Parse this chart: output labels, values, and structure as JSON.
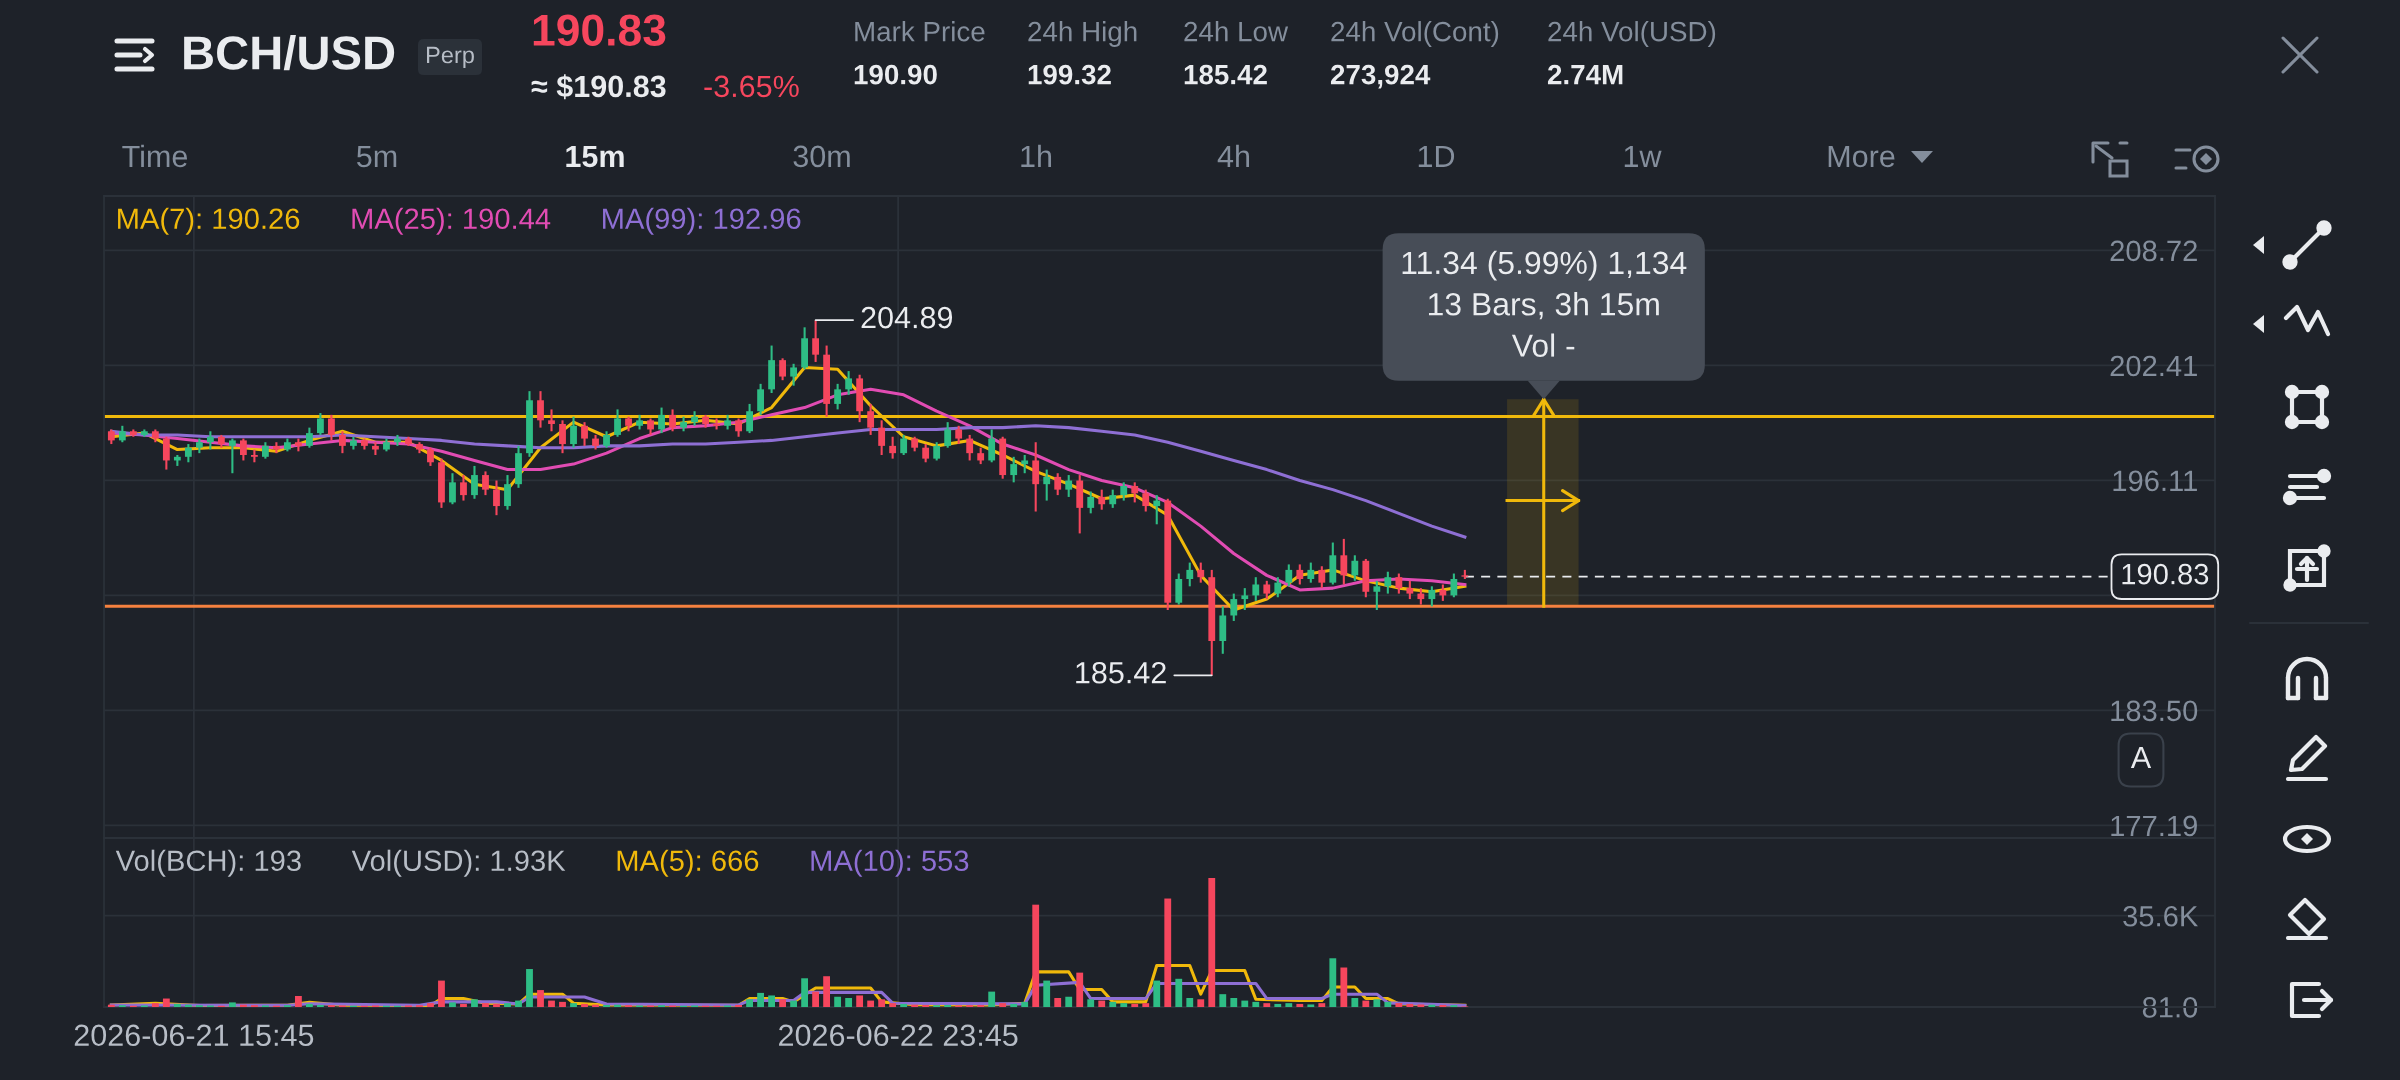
{
  "chart_data": [
    {
      "type": "candlestick",
      "title": "BCH/USD",
      "x": [
        "2026-06-21T12:00",
        "2026-06-21T12:30",
        "2026-06-21T13:00",
        "2026-06-21T13:30",
        "2026-06-21T14:00",
        "2026-06-21T14:30",
        "2026-06-21T15:00",
        "2026-06-21T15:30",
        "2026-06-21T16:00",
        "2026-06-21T16:30",
        "2026-06-21T17:00",
        "2026-06-21T17:30",
        "2026-06-21T18:00",
        "2026-06-21T18:30",
        "2026-06-21T19:00",
        "2026-06-21T19:30",
        "2026-06-21T20:00",
        "2026-06-21T20:30",
        "2026-06-21T21:00",
        "2026-06-21T21:30",
        "2026-06-21T22:00",
        "2026-06-21T22:30",
        "2026-06-21T23:00",
        "2026-06-21T23:30",
        "2026-06-22T00:00",
        "2026-06-22T00:30",
        "2026-06-22T01:00",
        "2026-06-22T01:30",
        "2026-06-22T02:00",
        "2026-06-22T02:30",
        "2026-06-22T03:00",
        "2026-06-22T03:30",
        "2026-06-22T04:00",
        "2026-06-22T04:30",
        "2026-06-22T05:00",
        "2026-06-22T05:30",
        "2026-06-22T06:00",
        "2026-06-22T06:30",
        "2026-06-22T07:00",
        "2026-06-22T07:30",
        "2026-06-22T08:00",
        "2026-06-22T08:30",
        "2026-06-22T09:00",
        "2026-06-22T09:30",
        "2026-06-22T10:00",
        "2026-06-22T10:30",
        "2026-06-22T11:00",
        "2026-06-22T11:30",
        "2026-06-22T12:00",
        "2026-06-22T12:30",
        "2026-06-22T13:00",
        "2026-06-22T13:30",
        "2026-06-22T14:00",
        "2026-06-22T14:30",
        "2026-06-22T15:00",
        "2026-06-22T15:30",
        "2026-06-22T16:00",
        "2026-06-22T16:30",
        "2026-06-22T17:00",
        "2026-06-22T17:30",
        "2026-06-22T18:00",
        "2026-06-22T18:30",
        "2026-06-22T19:00",
        "2026-06-22T19:30",
        "2026-06-22T20:00",
        "2026-06-22T20:30",
        "2026-06-22T21:00",
        "2026-06-22T21:30",
        "2026-06-22T22:00",
        "2026-06-22T22:30",
        "2026-06-22T23:00",
        "2026-06-22T23:30",
        "2026-06-23T00:00",
        "2026-06-23T00:30",
        "2026-06-23T01:00",
        "2026-06-23T01:30",
        "2026-06-23T02:00",
        "2026-06-23T02:30",
        "2026-06-23T03:00",
        "2026-06-23T03:30",
        "2026-06-23T04:00",
        "2026-06-23T04:30",
        "2026-06-23T05:00",
        "2026-06-23T05:30",
        "2026-06-23T06:00",
        "2026-06-23T06:30",
        "2026-06-23T07:00",
        "2026-06-23T07:30",
        "2026-06-23T08:00",
        "2026-06-23T08:30",
        "2026-06-23T09:00",
        "2026-06-23T09:30",
        "2026-06-23T10:00",
        "2026-06-23T10:30",
        "2026-06-23T11:00",
        "2026-06-23T11:30",
        "2026-06-23T12:00",
        "2026-06-23T12:30",
        "2026-06-23T13:00",
        "2026-06-23T13:30",
        "2026-06-23T14:00",
        "2026-06-23T14:30",
        "2026-06-23T15:00",
        "2026-06-23T15:30",
        "2026-06-23T16:00",
        "2026-06-23T16:30",
        "2026-06-23T17:00",
        "2026-06-23T17:30",
        "2026-06-23T18:00",
        "2026-06-23T18:30",
        "2026-06-23T19:00",
        "2026-06-23T19:30",
        "2026-06-23T20:00",
        "2026-06-23T20:30",
        "2026-06-23T21:00",
        "2026-06-23T21:30",
        "2026-06-23T22:00",
        "2026-06-23T22:30",
        "2026-06-23T23:00",
        "2026-06-23T23:30",
        "2026-06-24T00:00",
        "2026-06-24T00:30",
        "2026-06-24T01:00",
        "2026-06-24T01:30"
      ],
      "ohlc": [
        [
          198.8,
          198.9,
          198.1,
          198.3
        ],
        [
          198.3,
          199.1,
          198.2,
          198.8
        ],
        [
          198.8,
          198.9,
          198.5,
          198.6
        ],
        [
          198.6,
          198.9,
          198.5,
          198.8
        ],
        [
          198.8,
          198.9,
          198.2,
          198.4
        ],
        [
          198.4,
          198.5,
          196.7,
          197.2
        ],
        [
          197.2,
          197.5,
          196.9,
          197.4
        ],
        [
          197.4,
          198.1,
          197.1,
          197.9
        ],
        [
          197.9,
          198.4,
          197.6,
          198.2
        ],
        [
          198.2,
          198.8,
          197.8,
          198.5
        ],
        [
          198.5,
          198.6,
          197.9,
          198.1
        ],
        [
          198.0,
          198.4,
          196.5,
          198.3
        ],
        [
          198.3,
          198.4,
          197.2,
          197.5
        ],
        [
          197.5,
          197.8,
          197.1,
          197.4
        ],
        [
          197.4,
          198.2,
          197.3,
          198.0
        ],
        [
          198.0,
          198.2,
          197.6,
          197.8
        ],
        [
          197.8,
          198.4,
          197.7,
          198.2
        ],
        [
          198.2,
          198.4,
          197.7,
          198.0
        ],
        [
          198.0,
          199.0,
          197.9,
          198.7
        ],
        [
          198.7,
          199.8,
          198.6,
          199.5
        ],
        [
          199.5,
          199.7,
          198.3,
          198.6
        ],
        [
          198.6,
          198.8,
          197.6,
          198.0
        ],
        [
          198.0,
          198.5,
          197.8,
          198.3
        ],
        [
          198.3,
          198.4,
          197.8,
          198.0
        ],
        [
          198.0,
          198.2,
          197.5,
          197.8
        ],
        [
          197.8,
          198.4,
          197.7,
          198.2
        ],
        [
          198.2,
          198.6,
          198.0,
          198.4
        ],
        [
          198.4,
          198.5,
          198.0,
          198.1
        ],
        [
          198.1,
          198.2,
          197.6,
          197.8
        ],
        [
          197.8,
          197.9,
          196.9,
          197.1
        ],
        [
          197.1,
          197.3,
          194.6,
          194.9
        ],
        [
          194.9,
          196.5,
          194.8,
          196.0
        ],
        [
          196.0,
          196.4,
          195.0,
          195.3
        ],
        [
          195.3,
          196.9,
          195.1,
          196.4
        ],
        [
          196.4,
          196.6,
          195.3,
          195.6
        ],
        [
          195.6,
          196.1,
          194.2,
          194.7
        ],
        [
          194.7,
          196.4,
          194.5,
          195.9
        ],
        [
          195.9,
          198.0,
          195.7,
          197.6
        ],
        [
          197.6,
          201.0,
          197.4,
          200.5
        ],
        [
          200.5,
          201.0,
          199.0,
          199.4
        ],
        [
          199.4,
          200.0,
          198.8,
          199.2
        ],
        [
          199.2,
          199.4,
          197.6,
          198.1
        ],
        [
          198.1,
          199.6,
          197.9,
          199.1
        ],
        [
          199.1,
          199.3,
          198.0,
          198.4
        ],
        [
          198.4,
          198.6,
          197.8,
          198.0
        ],
        [
          198.0,
          198.8,
          197.9,
          198.6
        ],
        [
          198.6,
          200.0,
          198.5,
          199.5
        ],
        [
          199.5,
          199.6,
          198.8,
          199.1
        ],
        [
          199.1,
          199.7,
          198.9,
          199.4
        ],
        [
          199.4,
          199.5,
          198.6,
          198.9
        ],
        [
          198.9,
          200.1,
          198.7,
          199.7
        ],
        [
          199.7,
          200.0,
          198.8,
          199.0
        ],
        [
          199.0,
          199.6,
          198.8,
          199.3
        ],
        [
          199.3,
          199.9,
          199.1,
          199.6
        ],
        [
          199.6,
          199.7,
          199.0,
          199.2
        ],
        [
          199.2,
          199.5,
          198.9,
          199.1
        ],
        [
          199.1,
          199.7,
          198.9,
          199.4
        ],
        [
          199.4,
          199.5,
          198.5,
          198.8
        ],
        [
          198.8,
          200.3,
          198.7,
          199.9
        ],
        [
          199.9,
          201.4,
          199.7,
          201.1
        ],
        [
          201.1,
          203.5,
          200.9,
          202.7
        ],
        [
          202.7,
          202.8,
          201.6,
          201.8
        ],
        [
          201.8,
          202.5,
          201.3,
          202.3
        ],
        [
          202.3,
          204.5,
          202.2,
          203.9
        ],
        [
          203.9,
          204.89,
          202.6,
          203.0
        ],
        [
          203.0,
          203.5,
          199.6,
          200.3
        ],
        [
          200.3,
          201.4,
          200.0,
          201.1
        ],
        [
          201.1,
          202.1,
          200.8,
          201.7
        ],
        [
          201.7,
          201.9,
          199.3,
          199.9
        ],
        [
          199.9,
          200.3,
          198.6,
          199.0
        ],
        [
          199.0,
          199.4,
          197.5,
          198.0
        ],
        [
          198.0,
          198.5,
          197.3,
          197.6
        ],
        [
          197.6,
          198.6,
          197.5,
          198.4
        ],
        [
          198.4,
          198.5,
          197.7,
          197.9
        ],
        [
          197.9,
          198.1,
          197.1,
          197.3
        ],
        [
          197.3,
          198.2,
          197.2,
          198.0
        ],
        [
          198.0,
          199.3,
          197.9,
          198.9
        ],
        [
          198.9,
          199.1,
          198.1,
          198.4
        ],
        [
          198.4,
          198.6,
          197.2,
          197.6
        ],
        [
          197.6,
          197.9,
          197.0,
          197.2
        ],
        [
          197.2,
          198.9,
          197.1,
          198.4
        ],
        [
          198.4,
          198.5,
          196.2,
          196.4
        ],
        [
          196.4,
          197.4,
          196.0,
          197.0
        ],
        [
          197.0,
          197.5,
          196.5,
          197.2
        ],
        [
          197.2,
          198.2,
          194.4,
          195.9
        ],
        [
          195.9,
          196.7,
          195.0,
          196.3
        ],
        [
          196.3,
          196.5,
          195.3,
          195.6
        ],
        [
          195.6,
          196.4,
          195.2,
          196.1
        ],
        [
          196.1,
          196.4,
          193.2,
          194.6
        ],
        [
          194.6,
          195.5,
          194.3,
          195.2
        ],
        [
          195.2,
          195.6,
          194.5,
          194.8
        ],
        [
          194.8,
          195.6,
          194.6,
          195.3
        ],
        [
          195.3,
          196.0,
          195.0,
          195.8
        ],
        [
          195.8,
          196.0,
          194.9,
          195.4
        ],
        [
          195.4,
          195.6,
          194.4,
          194.7
        ],
        [
          194.7,
          195.3,
          193.7,
          195.0
        ],
        [
          195.0,
          195.1,
          189.0,
          189.4
        ],
        [
          189.4,
          191.0,
          189.3,
          190.7
        ],
        [
          190.7,
          191.6,
          190.3,
          191.2
        ],
        [
          191.2,
          191.6,
          190.5,
          190.8
        ],
        [
          190.8,
          191.2,
          185.42,
          187.3
        ],
        [
          187.3,
          189.2,
          186.6,
          188.7
        ],
        [
          188.7,
          189.9,
          188.4,
          189.6
        ],
        [
          189.6,
          190.2,
          189.0,
          189.8
        ],
        [
          189.8,
          190.8,
          189.5,
          190.4
        ],
        [
          190.4,
          190.6,
          189.6,
          189.9
        ],
        [
          189.9,
          190.8,
          189.7,
          190.5
        ],
        [
          190.5,
          191.5,
          190.3,
          191.2
        ],
        [
          191.2,
          191.5,
          190.4,
          190.7
        ],
        [
          190.7,
          191.6,
          190.5,
          191.2
        ],
        [
          191.2,
          191.4,
          190.2,
          190.5
        ],
        [
          190.5,
          192.7,
          190.4,
          192.0
        ],
        [
          192.0,
          192.9,
          190.4,
          190.9
        ],
        [
          190.9,
          192.0,
          190.6,
          191.7
        ],
        [
          191.7,
          191.8,
          189.7,
          190.0
        ],
        [
          190.0,
          190.6,
          189.0,
          190.3
        ],
        [
          190.3,
          191.1,
          189.9,
          190.8
        ],
        [
          190.8,
          191.0,
          189.9,
          190.2
        ],
        [
          190.2,
          190.6,
          189.6,
          189.9
        ],
        [
          189.9,
          190.2,
          189.3,
          189.6
        ],
        [
          189.6,
          190.3,
          189.2,
          190.1
        ],
        [
          190.1,
          190.4,
          189.5,
          189.8
        ],
        [
          189.8,
          191.0,
          189.7,
          190.7
        ],
        [
          190.9,
          191.2,
          190.7,
          190.83
        ]
      ],
      "colors": [
        "#f6465d",
        "#2ebd85",
        "#f6465d",
        "#2ebd85",
        "#f6465d",
        "#f6465d",
        "#2ebd85",
        "#2ebd85",
        "#2ebd85",
        "#2ebd85",
        "#f6465d",
        "#2ebd85",
        "#f6465d",
        "#f6465d",
        "#2ebd85",
        "#f6465d",
        "#2ebd85",
        "#f6465d",
        "#2ebd85",
        "#2ebd85",
        "#f6465d",
        "#f6465d",
        "#2ebd85",
        "#f6465d",
        "#f6465d",
        "#2ebd85",
        "#2ebd85",
        "#f6465d",
        "#f6465d",
        "#f6465d",
        "#f6465d",
        "#2ebd85",
        "#f6465d",
        "#2ebd85",
        "#f6465d",
        "#f6465d",
        "#2ebd85",
        "#2ebd85",
        "#2ebd85",
        "#f6465d",
        "#f6465d",
        "#f6465d",
        "#2ebd85",
        "#f6465d",
        "#f6465d",
        "#2ebd85",
        "#2ebd85",
        "#f6465d",
        "#2ebd85",
        "#f6465d",
        "#2ebd85",
        "#f6465d",
        "#2ebd85",
        "#2ebd85",
        "#f6465d",
        "#f6465d",
        "#2ebd85",
        "#f6465d",
        "#2ebd85",
        "#2ebd85",
        "#2ebd85",
        "#f6465d",
        "#2ebd85",
        "#2ebd85",
        "#f6465d",
        "#f6465d",
        "#2ebd85",
        "#2ebd85",
        "#f6465d",
        "#f6465d",
        "#f6465d",
        "#f6465d",
        "#2ebd85",
        "#f6465d",
        "#f6465d",
        "#2ebd85",
        "#2ebd85",
        "#f6465d",
        "#f6465d",
        "#f6465d",
        "#2ebd85",
        "#f6465d",
        "#2ebd85",
        "#2ebd85",
        "#f6465d",
        "#2ebd85",
        "#f6465d",
        "#2ebd85",
        "#f6465d",
        "#2ebd85",
        "#f6465d",
        "#2ebd85",
        "#2ebd85",
        "#f6465d",
        "#f6465d",
        "#2ebd85",
        "#f6465d",
        "#2ebd85",
        "#2ebd85",
        "#f6465d",
        "#f6465d",
        "#2ebd85",
        "#2ebd85",
        "#2ebd85",
        "#2ebd85",
        "#f6465d",
        "#2ebd85",
        "#2ebd85",
        "#f6465d",
        "#2ebd85",
        "#f6465d",
        "#2ebd85",
        "#f6465d",
        "#2ebd85",
        "#f6465d",
        "#2ebd85",
        "#2ebd85",
        "#f6465d",
        "#f6465d",
        "#f6465d",
        "#2ebd85",
        "#f6465d",
        "#2ebd85",
        "#f6465d"
      ],
      "series": [
        {
          "name": "MA(7): 190.26",
          "type": "line",
          "color": "#f0b90b",
          "x": [
            "2026-06-21T12:00",
            "2026-06-21T13:30",
            "2026-06-21T15:00",
            "2026-06-21T16:30",
            "2026-06-21T18:00",
            "2026-06-21T19:30",
            "2026-06-21T21:00",
            "2026-06-21T22:30",
            "2026-06-22T00:00",
            "2026-06-22T01:30",
            "2026-06-22T03:00",
            "2026-06-22T04:30",
            "2026-06-22T06:00",
            "2026-06-22T07:30",
            "2026-06-22T09:00",
            "2026-06-22T10:30",
            "2026-06-22T12:00",
            "2026-06-22T13:30",
            "2026-06-22T15:00",
            "2026-06-22T16:30",
            "2026-06-22T18:00",
            "2026-06-22T19:30",
            "2026-06-22T21:00",
            "2026-06-22T22:30",
            "2026-06-23T00:00",
            "2026-06-23T01:30",
            "2026-06-23T03:00",
            "2026-06-23T04:30",
            "2026-06-23T06:00",
            "2026-06-23T07:30",
            "2026-06-23T09:00",
            "2026-06-23T10:30",
            "2026-06-23T12:00",
            "2026-06-23T13:30",
            "2026-06-23T15:00",
            "2026-06-23T16:30",
            "2026-06-23T18:00",
            "2026-06-23T19:30",
            "2026-06-23T21:00",
            "2026-06-23T22:30",
            "2026-06-24T00:00",
            "2026-06-24T01:30"
          ],
          "values": [
            198.5,
            198.7,
            197.8,
            197.9,
            197.9,
            197.7,
            198.3,
            198.8,
            198.2,
            198.2,
            197.2,
            195.9,
            195.6,
            197.9,
            199.3,
            198.5,
            199.3,
            199.2,
            199.4,
            199.2,
            200.1,
            202.3,
            202.2,
            200.2,
            198.5,
            198.0,
            198.3,
            197.5,
            196.6,
            195.9,
            195.1,
            195.3,
            194.2,
            190.9,
            189.0,
            189.6,
            190.9,
            191.2,
            190.6,
            190.2,
            190.0,
            190.3
          ]
        },
        {
          "name": "MA(25): 190.44",
          "type": "line",
          "color": "#e14cb3",
          "x": [
            "2026-06-21T12:00",
            "2026-06-21T13:30",
            "2026-06-21T15:00",
            "2026-06-21T16:30",
            "2026-06-21T18:00",
            "2026-06-21T19:30",
            "2026-06-21T21:00",
            "2026-06-21T22:30",
            "2026-06-22T00:00",
            "2026-06-22T01:30",
            "2026-06-22T03:00",
            "2026-06-22T04:30",
            "2026-06-22T06:00",
            "2026-06-22T07:30",
            "2026-06-22T09:00",
            "2026-06-22T10:30",
            "2026-06-22T12:00",
            "2026-06-22T13:30",
            "2026-06-22T15:00",
            "2026-06-22T16:30",
            "2026-06-22T18:00",
            "2026-06-22T19:30",
            "2026-06-22T21:00",
            "2026-06-22T22:30",
            "2026-06-23T00:00",
            "2026-06-23T01:30",
            "2026-06-23T03:00",
            "2026-06-23T04:30",
            "2026-06-23T06:00",
            "2026-06-23T07:30",
            "2026-06-23T09:00",
            "2026-06-23T10:30",
            "2026-06-23T12:00",
            "2026-06-23T13:30",
            "2026-06-23T15:00",
            "2026-06-23T16:30",
            "2026-06-23T18:00",
            "2026-06-23T19:30",
            "2026-06-23T21:00",
            "2026-06-23T22:30",
            "2026-06-24T00:00",
            "2026-06-24T01:30"
          ],
          "values": [
            198.7,
            198.6,
            198.4,
            198.2,
            198.0,
            197.9,
            198.1,
            198.3,
            198.2,
            198.1,
            197.7,
            197.2,
            196.7,
            196.7,
            197.0,
            197.6,
            198.4,
            199.0,
            199.1,
            199.3,
            199.7,
            200.1,
            200.8,
            201.1,
            200.8,
            199.9,
            199.1,
            198.1,
            197.5,
            196.7,
            196.1,
            195.7,
            194.9,
            193.6,
            192.1,
            190.9,
            190.1,
            190.2,
            190.6,
            190.7,
            190.6,
            190.4
          ]
        },
        {
          "name": "MA(99): 192.96",
          "type": "line",
          "color": "#8e6fd4",
          "x": [
            "2026-06-21T12:00",
            "2026-06-21T13:30",
            "2026-06-21T15:00",
            "2026-06-21T16:30",
            "2026-06-21T18:00",
            "2026-06-21T19:30",
            "2026-06-21T21:00",
            "2026-06-21T22:30",
            "2026-06-22T00:00",
            "2026-06-22T01:30",
            "2026-06-22T03:00",
            "2026-06-22T04:30",
            "2026-06-22T06:00",
            "2026-06-22T07:30",
            "2026-06-22T09:00",
            "2026-06-22T10:30",
            "2026-06-22T12:00",
            "2026-06-22T13:30",
            "2026-06-22T15:00",
            "2026-06-22T16:30",
            "2026-06-22T18:00",
            "2026-06-22T19:30",
            "2026-06-22T21:00",
            "2026-06-22T22:30",
            "2026-06-23T00:00",
            "2026-06-23T01:30",
            "2026-06-23T03:00",
            "2026-06-23T04:30",
            "2026-06-23T06:00",
            "2026-06-23T07:30",
            "2026-06-23T09:00",
            "2026-06-23T10:30",
            "2026-06-23T12:00",
            "2026-06-23T13:30",
            "2026-06-23T15:00",
            "2026-06-23T16:30",
            "2026-06-23T18:00",
            "2026-06-23T19:30",
            "2026-06-23T21:00",
            "2026-06-23T22:30",
            "2026-06-24T00:00",
            "2026-06-24T01:30"
          ],
          "values": [
            198.8,
            198.6,
            198.6,
            198.5,
            198.5,
            198.5,
            198.5,
            198.6,
            198.5,
            198.4,
            198.3,
            198.1,
            198.0,
            197.9,
            197.9,
            198.0,
            198.0,
            198.1,
            198.1,
            198.2,
            198.3,
            198.5,
            198.7,
            198.9,
            198.9,
            198.9,
            199.0,
            199.0,
            199.1,
            199.0,
            198.8,
            198.6,
            198.2,
            197.7,
            197.2,
            196.7,
            196.1,
            195.6,
            195.0,
            194.3,
            193.6,
            193.0
          ]
        },
        {
          "type": "line",
          "color": "#f0b90b",
          "x": [
            "2026-06-24T05:05",
            "2026-06-24T05:05"
          ],
          "values": [
            189.21,
            200.55
          ]
        },
        {
          "type": "line",
          "color": "#f0b90b",
          "x": [
            "2026-06-24T03:25",
            "2026-06-24T06:40"
          ],
          "values": [
            195.0,
            195.0
          ],
          "lower": [
            189.21,
            189.21
          ],
          "upper": [
            200.55,
            200.55
          ]
        }
      ],
      "xlim": [
        "2026-06-21T11:40",
        "2026-06-25T11:35"
      ],
      "ylim": [
        176.5,
        211.7
      ],
      "xticks": [
        {
          "value": "2026-06-21T15:45",
          "label": null
        },
        {
          "value": "2026-06-22T23:45",
          "label": null
        }
      ],
      "yticks": [
        208.72,
        202.41,
        196.11,
        {
          "value": 189.8,
          "label": null
        },
        {
          "value": 183.5,
          "label": "183.50"
        },
        177.19
      ],
      "grid": true,
      "legend": "top left",
      "tick_labels": "y",
      "ref_lines": [
        {
          "axis": "y",
          "value": 199.61,
          "color": "#f0b90b"
        },
        {
          "axis": "y",
          "value": 189.21,
          "color": "#f5813f"
        },
        {
          "axis": "y",
          "value": 190.83,
          "label": "190.83",
          "color": "#eaecef",
          "line_style": "dashed"
        }
      ],
      "annotations": [
        "Perp",
        "190.83",
        "≈ $190.83",
        "-3.65%",
        "Mark Price",
        "190.90",
        "24h High",
        "199.32",
        "24h Low",
        "185.42",
        "24h Vol(Cont)",
        "273,924",
        "24h Vol(USD)",
        "2.74M",
        "Time",
        "5m",
        "15m",
        "30m",
        "1h",
        "4h",
        "1D",
        "1w",
        "More",
        "A",
        {
          "text": "204.89",
          "x": "2026-06-22T20:00",
          "y": 204.89
        },
        {
          "text": "185.42",
          "x": "2026-06-23T14:00",
          "y": 185.42
        },
        {
          "text": "11.34 (5.99%) 1,134\n13 Bars, 3h 15m\nVol -",
          "x": "2026-06-24T05:05",
          "y": 200.55
        }
      ]
    },
    {
      "type": "bar",
      "x": [
        "2026-06-21T12:00",
        "2026-06-21T12:30",
        "2026-06-21T13:00",
        "2026-06-21T13:30",
        "2026-06-21T14:00",
        "2026-06-21T14:30",
        "2026-06-21T15:00",
        "2026-06-21T15:30",
        "2026-06-21T16:00",
        "2026-06-21T16:30",
        "2026-06-21T17:00",
        "2026-06-21T17:30",
        "2026-06-21T18:00",
        "2026-06-21T18:30",
        "2026-06-21T19:00",
        "2026-06-21T19:30",
        "2026-06-21T20:00",
        "2026-06-21T20:30",
        "2026-06-21T21:00",
        "2026-06-21T21:30",
        "2026-06-21T22:00",
        "2026-06-21T22:30",
        "2026-06-21T23:00",
        "2026-06-21T23:30",
        "2026-06-22T00:00",
        "2026-06-22T00:30",
        "2026-06-22T01:00",
        "2026-06-22T01:30",
        "2026-06-22T02:00",
        "2026-06-22T02:30",
        "2026-06-22T03:00",
        "2026-06-22T03:30",
        "2026-06-22T04:00",
        "2026-06-22T04:30",
        "2026-06-22T05:00",
        "2026-06-22T05:30",
        "2026-06-22T06:00",
        "2026-06-22T06:30",
        "2026-06-22T07:00",
        "2026-06-22T07:30",
        "2026-06-22T08:00",
        "2026-06-22T08:30",
        "2026-06-22T09:00",
        "2026-06-22T09:30",
        "2026-06-22T10:00",
        "2026-06-22T10:30",
        "2026-06-22T11:00",
        "2026-06-22T11:30",
        "2026-06-22T12:00",
        "2026-06-22T12:30",
        "2026-06-22T13:00",
        "2026-06-22T13:30",
        "2026-06-22T14:00",
        "2026-06-22T14:30",
        "2026-06-22T15:00",
        "2026-06-22T15:30",
        "2026-06-22T16:00",
        "2026-06-22T16:30",
        "2026-06-22T17:00",
        "2026-06-22T17:30",
        "2026-06-22T18:00",
        "2026-06-22T18:30",
        "2026-06-22T19:00",
        "2026-06-22T19:30",
        "2026-06-22T20:00",
        "2026-06-22T20:30",
        "2026-06-22T21:00",
        "2026-06-22T21:30",
        "2026-06-22T22:00",
        "2026-06-22T22:30",
        "2026-06-22T23:00",
        "2026-06-22T23:30",
        "2026-06-23T00:00",
        "2026-06-23T00:30",
        "2026-06-23T01:00",
        "2026-06-23T01:30",
        "2026-06-23T02:00",
        "2026-06-23T02:30",
        "2026-06-23T03:00",
        "2026-06-23T03:30",
        "2026-06-23T04:00",
        "2026-06-23T04:30",
        "2026-06-23T05:00",
        "2026-06-23T05:30",
        "2026-06-23T06:00",
        "2026-06-23T06:30",
        "2026-06-23T07:00",
        "2026-06-23T07:30",
        "2026-06-23T08:00",
        "2026-06-23T08:30",
        "2026-06-23T09:00",
        "2026-06-23T09:30",
        "2026-06-23T10:00",
        "2026-06-23T10:30",
        "2026-06-23T11:00",
        "2026-06-23T11:30",
        "2026-06-23T12:00",
        "2026-06-23T12:30",
        "2026-06-23T13:00",
        "2026-06-23T13:30",
        "2026-06-23T14:00",
        "2026-06-23T14:30",
        "2026-06-23T15:00",
        "2026-06-23T15:30",
        "2026-06-23T16:00",
        "2026-06-23T16:30",
        "2026-06-23T17:00",
        "2026-06-23T17:30",
        "2026-06-23T18:00",
        "2026-06-23T18:30",
        "2026-06-23T19:00",
        "2026-06-23T19:30",
        "2026-06-23T20:00",
        "2026-06-23T20:30",
        "2026-06-23T21:00",
        "2026-06-23T21:30",
        "2026-06-23T22:00",
        "2026-06-23T22:30",
        "2026-06-23T23:00",
        "2026-06-23T23:30",
        "2026-06-24T00:00",
        "2026-06-24T00:30",
        "2026-06-24T01:00",
        "2026-06-24T01:30"
      ],
      "series": [
        {
          "values": [
            900,
            700,
            500,
            600,
            1500,
            3300,
            1200,
            900,
            700,
            600,
            500,
            1800,
            900,
            700,
            600,
            500,
            700,
            4300,
            1200,
            800,
            700,
            600,
            500,
            500,
            600,
            500,
            500,
            600,
            700,
            1500,
            10300,
            1800,
            1200,
            3000,
            1500,
            1200,
            1500,
            2500,
            14800,
            6600,
            2500,
            2000,
            1500,
            1200,
            900,
            800,
            900,
            700,
            600,
            600,
            700,
            600,
            500,
            600,
            500,
            500,
            600,
            800,
            3000,
            5500,
            4500,
            3000,
            2500,
            11200,
            6000,
            12000,
            4000,
            3500,
            4500,
            2500,
            3000,
            1500,
            1200,
            900,
            800,
            700,
            800,
            600,
            700,
            800,
            6000,
            1500,
            1200,
            2000,
            39900,
            10300,
            3500,
            4000,
            13400,
            3000,
            2500,
            2000,
            1500,
            1200,
            1500,
            10300,
            42300,
            11000,
            3500,
            3000,
            50300,
            5000,
            3500,
            2500,
            2000,
            1500,
            1200,
            1500,
            1200,
            1000,
            1500,
            19000,
            15400,
            3500,
            2500,
            3000,
            2000,
            1500,
            1200,
            1000,
            900,
            800,
            700,
            200
          ],
          "colors": [
            "#f6465d",
            "#2ebd85",
            "#f6465d",
            "#2ebd85",
            "#f6465d",
            "#f6465d",
            "#2ebd85",
            "#2ebd85",
            "#2ebd85",
            "#2ebd85",
            "#f6465d",
            "#2ebd85",
            "#f6465d",
            "#f6465d",
            "#2ebd85",
            "#f6465d",
            "#2ebd85",
            "#f6465d",
            "#2ebd85",
            "#2ebd85",
            "#f6465d",
            "#f6465d",
            "#2ebd85",
            "#f6465d",
            "#f6465d",
            "#2ebd85",
            "#2ebd85",
            "#f6465d",
            "#f6465d",
            "#f6465d",
            "#f6465d",
            "#2ebd85",
            "#f6465d",
            "#2ebd85",
            "#f6465d",
            "#f6465d",
            "#2ebd85",
            "#2ebd85",
            "#2ebd85",
            "#f6465d",
            "#f6465d",
            "#f6465d",
            "#2ebd85",
            "#f6465d",
            "#f6465d",
            "#2ebd85",
            "#2ebd85",
            "#f6465d",
            "#2ebd85",
            "#f6465d",
            "#2ebd85",
            "#f6465d",
            "#2ebd85",
            "#2ebd85",
            "#f6465d",
            "#f6465d",
            "#2ebd85",
            "#f6465d",
            "#2ebd85",
            "#2ebd85",
            "#2ebd85",
            "#f6465d",
            "#2ebd85",
            "#2ebd85",
            "#f6465d",
            "#f6465d",
            "#2ebd85",
            "#2ebd85",
            "#f6465d",
            "#f6465d",
            "#f6465d",
            "#f6465d",
            "#2ebd85",
            "#f6465d",
            "#f6465d",
            "#2ebd85",
            "#2ebd85",
            "#f6465d",
            "#f6465d",
            "#f6465d",
            "#2ebd85",
            "#f6465d",
            "#2ebd85",
            "#2ebd85",
            "#f6465d",
            "#2ebd85",
            "#f6465d",
            "#2ebd85",
            "#f6465d",
            "#2ebd85",
            "#f6465d",
            "#2ebd85",
            "#2ebd85",
            "#f6465d",
            "#f6465d",
            "#2ebd85",
            "#f6465d",
            "#2ebd85",
            "#2ebd85",
            "#f6465d",
            "#f6465d",
            "#2ebd85",
            "#2ebd85",
            "#2ebd85",
            "#2ebd85",
            "#f6465d",
            "#2ebd85",
            "#2ebd85",
            "#f6465d",
            "#2ebd85",
            "#f6465d",
            "#2ebd85",
            "#f6465d",
            "#2ebd85",
            "#f6465d",
            "#2ebd85",
            "#2ebd85",
            "#f6465d",
            "#f6465d",
            "#f6465d",
            "#2ebd85",
            "#f6465d",
            "#2ebd85",
            "#f6465d"
          ]
        },
        {
          "name": "MA(5): 666",
          "type": "line",
          "color": "#f0b90b",
          "x": [
            "2026-06-21T12:00",
            "2026-06-21T14:00",
            "2026-06-21T16:00",
            "2026-06-21T20:00",
            "2026-06-21T21:00",
            "2026-06-21T22:30",
            "2026-06-22T02:30",
            "2026-06-22T03:00",
            "2026-06-22T04:00",
            "2026-06-22T05:00",
            "2026-06-22T06:30",
            "2026-06-22T07:00",
            "2026-06-22T08:30",
            "2026-06-22T09:00",
            "2026-06-22T10:30",
            "2026-06-22T16:30",
            "2026-06-22T17:00",
            "2026-06-22T18:30",
            "2026-06-22T19:00",
            "2026-06-22T20:00",
            "2026-06-22T22:30",
            "2026-06-22T23:00",
            "2026-06-23T00:30",
            "2026-06-23T04:00",
            "2026-06-23T05:30",
            "2026-06-23T06:00",
            "2026-06-23T07:30",
            "2026-06-23T08:00",
            "2026-06-23T09:00",
            "2026-06-23T09:30",
            "2026-06-23T11:00",
            "2026-06-23T11:30",
            "2026-06-23T13:00",
            "2026-06-23T13:30",
            "2026-06-23T14:00",
            "2026-06-23T15:30",
            "2026-06-23T16:00",
            "2026-06-23T18:00",
            "2026-06-23T19:00",
            "2026-06-23T19:30",
            "2026-06-23T20:30",
            "2026-06-23T21:00",
            "2026-06-23T22:00",
            "2026-06-23T22:30",
            "2026-06-24T01:30"
          ],
          "values": [
            800,
            1500,
            600,
            700,
            1800,
            700,
            600,
            3300,
            3300,
            1500,
            1200,
            5000,
            5000,
            1500,
            800,
            700,
            3300,
            3300,
            2000,
            7400,
            7400,
            2000,
            900,
            800,
            1500,
            13700,
            13700,
            6800,
            6800,
            2000,
            2000,
            16200,
            16200,
            5000,
            14200,
            14200,
            3000,
            2500,
            2500,
            7800,
            7800,
            3300,
            3300,
            1200,
            700
          ]
        },
        {
          "name": "MA(10): 553",
          "type": "line",
          "color": "#8e6fd4",
          "x": [
            "2026-06-21T12:00",
            "2026-06-21T20:00",
            "2026-06-21T21:00",
            "2026-06-22T02:00",
            "2026-06-22T03:00",
            "2026-06-22T05:30",
            "2026-06-22T06:30",
            "2026-06-22T07:00",
            "2026-06-22T09:30",
            "2026-06-22T10:30",
            "2026-06-22T16:30",
            "2026-06-22T17:00",
            "2026-06-22T19:00",
            "2026-06-22T19:30",
            "2026-06-22T23:00",
            "2026-06-22T23:30",
            "2026-06-23T05:30",
            "2026-06-23T06:00",
            "2026-06-23T08:00",
            "2026-06-23T08:30",
            "2026-06-23T11:00",
            "2026-06-23T11:30",
            "2026-06-23T16:00",
            "2026-06-23T16:30",
            "2026-06-23T19:00",
            "2026-06-23T19:30",
            "2026-06-23T21:30",
            "2026-06-23T22:00",
            "2026-06-24T01:30"
          ],
          "values": [
            800,
            700,
            1300,
            700,
            2000,
            2000,
            1200,
            3900,
            3900,
            1200,
            800,
            2500,
            2500,
            5700,
            5700,
            1500,
            1200,
            8500,
            9600,
            3300,
            3300,
            9200,
            9200,
            3300,
            3300,
            5000,
            5000,
            1600,
            600
          ]
        }
      ],
      "xlim": [
        "2026-06-21T11:40",
        "2026-06-25T11:35"
      ],
      "ylim": [
        0,
        65900
      ],
      "xticks": [
        {
          "value": "2026-06-21T15:45",
          "label": "2026-06-21 15:45"
        },
        {
          "value": "2026-06-22T23:45",
          "label": "2026-06-22 23:45"
        }
      ],
      "yticks": [
        {
          "value": 35600,
          "label": "35.6K"
        },
        {
          "value": 81,
          "label": "81.0"
        }
      ],
      "grid": true,
      "legend": "top left",
      "annotations": [
        "Vol(BCH): 193",
        "Vol(USD): 1.93K"
      ]
    }
  ]
}
